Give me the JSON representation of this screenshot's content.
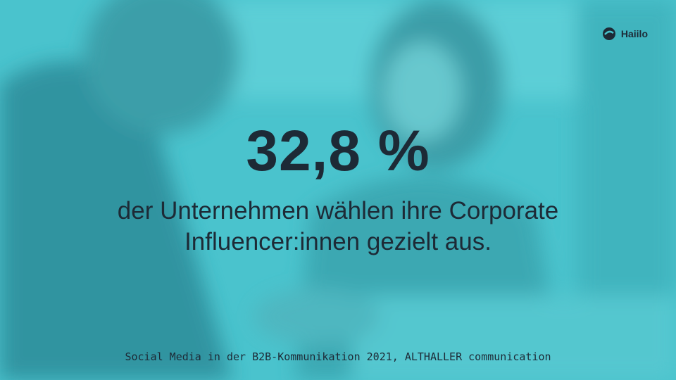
{
  "logo": {
    "text": "Haiilo"
  },
  "statistic": {
    "value": "32,8 %",
    "description": [
      "der Unternehmen wählen ihre Corporate",
      "Influencer:innen gezielt aus."
    ]
  },
  "source": "Social Media in der B2B-Kommunikation 2021, ALTHALLER communication"
}
